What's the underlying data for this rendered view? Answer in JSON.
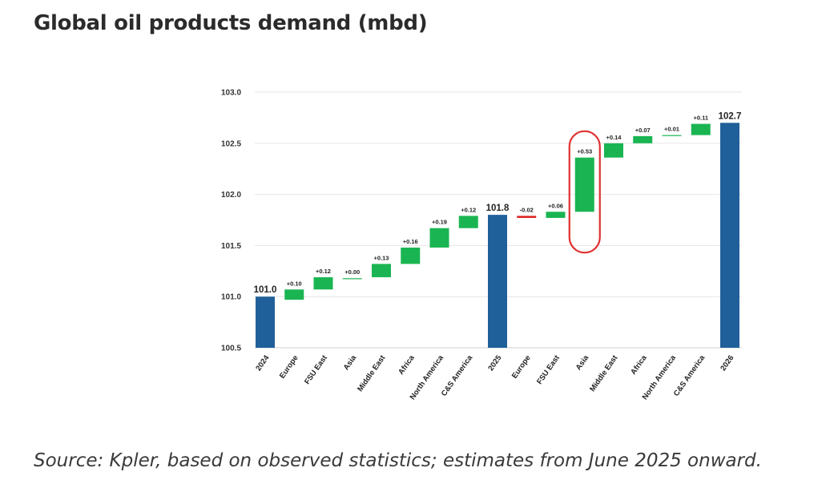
{
  "title": "Global oil products demand (mbd)",
  "source": "Source: Kpler, based on observed statistics; estimates from June 2025 onward.",
  "colors": {
    "total": "#20609a",
    "increase": "#1ab552",
    "decrease": "#e02020",
    "highlight_ring": "#e03030",
    "grid": "#e6e6e6"
  },
  "chart_data": {
    "type": "bar",
    "subtype": "waterfall",
    "ylim": [
      100.5,
      103.0
    ],
    "yticks": [
      "100.5",
      "101.0",
      "101.5",
      "102.0",
      "102.5",
      "103.0"
    ],
    "grid": true,
    "categories": [
      "2024",
      "Europe",
      "FSU East",
      "Asia",
      "Middle East",
      "Africa",
      "North America",
      "C&S America",
      "2025",
      "Europe",
      "FSU East",
      "Asia",
      "Middle East",
      "Africa",
      "North America",
      "C&S America",
      "2026"
    ],
    "bars": [
      {
        "label": "2024",
        "kind": "total",
        "value": 101.0,
        "text": "101.0"
      },
      {
        "label": "Europe",
        "kind": "delta",
        "start": 100.97,
        "end": 101.07,
        "text": "+0.10"
      },
      {
        "label": "FSU East",
        "kind": "delta",
        "start": 101.07,
        "end": 101.19,
        "text": "+0.12"
      },
      {
        "label": "Asia",
        "kind": "delta",
        "start": 101.18,
        "end": 101.18,
        "text": "+0.00"
      },
      {
        "label": "Middle East",
        "kind": "delta",
        "start": 101.19,
        "end": 101.32,
        "text": "+0.13"
      },
      {
        "label": "Africa",
        "kind": "delta",
        "start": 101.32,
        "end": 101.48,
        "text": "+0.16"
      },
      {
        "label": "North America",
        "kind": "delta",
        "start": 101.48,
        "end": 101.67,
        "text": "+0.19"
      },
      {
        "label": "C&S America",
        "kind": "delta",
        "start": 101.67,
        "end": 101.79,
        "text": "+0.12"
      },
      {
        "label": "2025",
        "kind": "total",
        "value": 101.8,
        "text": "101.8"
      },
      {
        "label": "Europe",
        "kind": "delta",
        "start": 101.79,
        "end": 101.77,
        "text": "-0.02"
      },
      {
        "label": "FSU East",
        "kind": "delta",
        "start": 101.77,
        "end": 101.83,
        "text": "+0.06"
      },
      {
        "label": "Asia",
        "kind": "delta",
        "start": 101.83,
        "end": 102.36,
        "text": "+0.53",
        "highlighted": true
      },
      {
        "label": "Middle East",
        "kind": "delta",
        "start": 102.36,
        "end": 102.5,
        "text": "+0.14"
      },
      {
        "label": "Africa",
        "kind": "delta",
        "start": 102.5,
        "end": 102.57,
        "text": "+0.07"
      },
      {
        "label": "North America",
        "kind": "delta",
        "start": 102.57,
        "end": 102.58,
        "text": "+0.01"
      },
      {
        "label": "C&S America",
        "kind": "delta",
        "start": 102.58,
        "end": 102.69,
        "text": "+0.11"
      },
      {
        "label": "2026",
        "kind": "total",
        "value": 102.7,
        "text": "102.7"
      }
    ]
  }
}
